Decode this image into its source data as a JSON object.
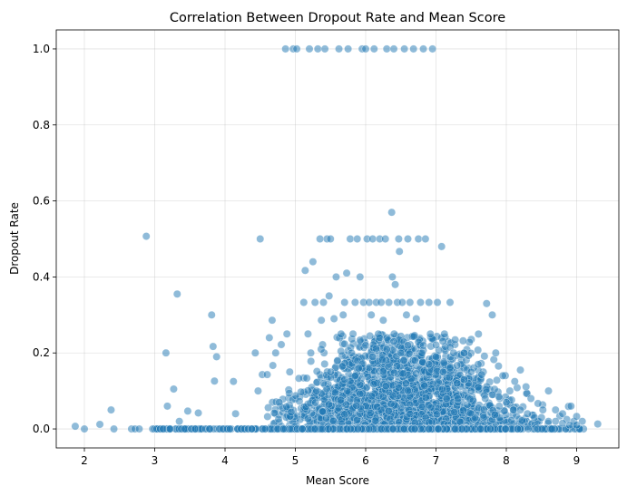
{
  "chart_data": {
    "type": "scatter",
    "title": "Correlation Between Dropout Rate and Mean Score",
    "xlabel": "Mean Score",
    "ylabel": "Dropout Rate",
    "xlim": [
      1.6,
      9.6
    ],
    "ylim": [
      -0.05,
      1.05
    ],
    "xticks": [
      2,
      3,
      4,
      5,
      6,
      7,
      8,
      9
    ],
    "xtick_labels": [
      "2",
      "3",
      "4",
      "5",
      "6",
      "7",
      "8",
      "9"
    ],
    "yticks": [
      0.0,
      0.2,
      0.4,
      0.6,
      0.8,
      1.0
    ],
    "ytick_labels": [
      "0.0",
      "0.2",
      "0.4",
      "0.6",
      "0.8",
      "1.0"
    ],
    "grid": true,
    "marker_color": "#1f77b4",
    "marker_alpha": 0.5,
    "points": [
      [
        1.87,
        0.007
      ],
      [
        2.0,
        0.0
      ],
      [
        2.22,
        0.012
      ],
      [
        2.38,
        0.05
      ],
      [
        2.42,
        0.0
      ],
      [
        2.67,
        0.0
      ],
      [
        2.72,
        0.0
      ],
      [
        2.78,
        0.0
      ],
      [
        2.88,
        0.507
      ],
      [
        2.97,
        0.0
      ],
      [
        3.03,
        0.0
      ],
      [
        3.08,
        0.0
      ],
      [
        3.12,
        0.0
      ],
      [
        3.16,
        0.2
      ],
      [
        3.18,
        0.06
      ],
      [
        3.22,
        0.0
      ],
      [
        3.27,
        0.105
      ],
      [
        3.32,
        0.355
      ],
      [
        3.35,
        0.02
      ],
      [
        3.38,
        0.0
      ],
      [
        3.43,
        0.0
      ],
      [
        3.47,
        0.047
      ],
      [
        3.52,
        0.0
      ],
      [
        3.58,
        0.0
      ],
      [
        3.62,
        0.042
      ],
      [
        3.67,
        0.0
      ],
      [
        3.72,
        0.0
      ],
      [
        3.78,
        0.0
      ],
      [
        3.81,
        0.3
      ],
      [
        3.83,
        0.217
      ],
      [
        3.85,
        0.126
      ],
      [
        3.88,
        0.19
      ],
      [
        3.92,
        0.0
      ],
      [
        3.97,
        0.0
      ],
      [
        4.03,
        0.0
      ],
      [
        4.07,
        0.0
      ],
      [
        4.12,
        0.125
      ],
      [
        4.15,
        0.04
      ],
      [
        4.18,
        0.0
      ],
      [
        4.23,
        0.0
      ],
      [
        4.28,
        0.0
      ],
      [
        4.33,
        0.0
      ],
      [
        4.38,
        0.0
      ],
      [
        4.43,
        0.2
      ],
      [
        4.47,
        0.1
      ],
      [
        4.5,
        0.5
      ],
      [
        4.53,
        0.143
      ],
      [
        4.57,
        0.0
      ],
      [
        4.6,
        0.143
      ],
      [
        4.63,
        0.24
      ],
      [
        4.67,
        0.286
      ],
      [
        4.68,
        0.167
      ],
      [
        4.7,
        0.042
      ],
      [
        4.72,
        0.2
      ],
      [
        4.75,
        0.0
      ],
      [
        4.77,
        0.07
      ],
      [
        4.8,
        0.222
      ],
      [
        4.83,
        0.0
      ],
      [
        4.86,
        1.0
      ],
      [
        4.88,
        0.25
      ],
      [
        4.92,
        0.15
      ],
      [
        4.97,
        1.0
      ],
      [
        5.02,
        1.0
      ],
      [
        5.05,
        0.133
      ],
      [
        5.1,
        0.0
      ],
      [
        5.12,
        0.333
      ],
      [
        5.14,
        0.417
      ],
      [
        5.18,
        0.25
      ],
      [
        5.2,
        1.0
      ],
      [
        5.22,
        0.2
      ],
      [
        5.25,
        0.44
      ],
      [
        5.28,
        0.333
      ],
      [
        5.32,
        1.0
      ],
      [
        5.35,
        0.5
      ],
      [
        5.37,
        0.286
      ],
      [
        5.4,
        0.333
      ],
      [
        5.42,
        1.0
      ],
      [
        5.45,
        0.5
      ],
      [
        5.48,
        0.35
      ],
      [
        5.5,
        0.5
      ],
      [
        5.55,
        0.29
      ],
      [
        5.58,
        0.4
      ],
      [
        5.62,
        1.0
      ],
      [
        5.65,
        0.25
      ],
      [
        5.68,
        0.3
      ],
      [
        5.7,
        0.333
      ],
      [
        5.73,
        0.41
      ],
      [
        5.75,
        1.0
      ],
      [
        5.78,
        0.5
      ],
      [
        5.82,
        0.25
      ],
      [
        5.85,
        0.333
      ],
      [
        5.88,
        0.5
      ],
      [
        5.92,
        0.4
      ],
      [
        5.95,
        1.0
      ],
      [
        5.97,
        0.333
      ],
      [
        6.0,
        1.0
      ],
      [
        6.02,
        0.5
      ],
      [
        6.05,
        0.333
      ],
      [
        6.08,
        0.3
      ],
      [
        6.1,
        0.5
      ],
      [
        6.12,
        1.0
      ],
      [
        6.15,
        0.333
      ],
      [
        6.18,
        0.25
      ],
      [
        6.2,
        0.5
      ],
      [
        6.22,
        0.333
      ],
      [
        6.25,
        0.286
      ],
      [
        6.28,
        0.5
      ],
      [
        6.3,
        1.0
      ],
      [
        6.33,
        0.333
      ],
      [
        6.37,
        0.57
      ],
      [
        6.38,
        0.4
      ],
      [
        6.4,
        1.0
      ],
      [
        6.42,
        0.38
      ],
      [
        6.45,
        0.333
      ],
      [
        6.47,
        0.5
      ],
      [
        6.48,
        0.467
      ],
      [
        6.52,
        0.333
      ],
      [
        6.55,
        1.0
      ],
      [
        6.58,
        0.3
      ],
      [
        6.6,
        0.5
      ],
      [
        6.63,
        0.333
      ],
      [
        6.68,
        1.0
      ],
      [
        6.72,
        0.29
      ],
      [
        6.75,
        0.5
      ],
      [
        6.78,
        0.333
      ],
      [
        6.82,
        1.0
      ],
      [
        6.85,
        0.5
      ],
      [
        6.9,
        0.333
      ],
      [
        6.92,
        0.25
      ],
      [
        6.95,
        1.0
      ],
      [
        7.02,
        0.333
      ],
      [
        7.08,
        0.48
      ],
      [
        7.12,
        0.25
      ],
      [
        7.2,
        0.333
      ],
      [
        7.25,
        0.2
      ],
      [
        7.3,
        0.167
      ],
      [
        7.4,
        0.2
      ],
      [
        7.5,
        0.15
      ],
      [
        7.6,
        0.17
      ],
      [
        7.65,
        0.143
      ],
      [
        7.72,
        0.33
      ],
      [
        7.8,
        0.3
      ],
      [
        7.85,
        0.2
      ],
      [
        7.95,
        0.14
      ],
      [
        8.05,
        0.1
      ],
      [
        8.12,
        0.125
      ],
      [
        8.2,
        0.155
      ],
      [
        8.28,
        0.111
      ],
      [
        8.35,
        0.08
      ],
      [
        8.45,
        0.067
      ],
      [
        8.52,
        0.05
      ],
      [
        8.6,
        0.1
      ],
      [
        8.7,
        0.05
      ],
      [
        8.76,
        0.034
      ],
      [
        8.8,
        0.04
      ],
      [
        8.86,
        0.025
      ],
      [
        8.92,
        0.06
      ],
      [
        8.96,
        0.02
      ],
      [
        9.0,
        0.033
      ],
      [
        9.04,
        0.0
      ],
      [
        9.08,
        0.02
      ],
      [
        9.3,
        0.013
      ],
      [
        5.3,
        0.1
      ],
      [
        5.4,
        0.12
      ],
      [
        5.5,
        0.15
      ],
      [
        5.6,
        0.18
      ],
      [
        5.7,
        0.13
      ],
      [
        5.8,
        0.2
      ],
      [
        5.9,
        0.16
      ],
      [
        6.0,
        0.22
      ],
      [
        6.1,
        0.19
      ],
      [
        6.2,
        0.24
      ],
      [
        6.3,
        0.21
      ],
      [
        6.4,
        0.23
      ],
      [
        6.5,
        0.2
      ],
      [
        6.6,
        0.22
      ],
      [
        6.7,
        0.18
      ],
      [
        6.8,
        0.2
      ],
      [
        6.9,
        0.17
      ],
      [
        7.0,
        0.19
      ],
      [
        7.1,
        0.15
      ],
      [
        7.2,
        0.16
      ],
      [
        7.3,
        0.12
      ],
      [
        7.4,
        0.13
      ],
      [
        7.5,
        0.1
      ],
      [
        7.6,
        0.11
      ],
      [
        7.7,
        0.08
      ],
      [
        7.8,
        0.09
      ],
      [
        7.9,
        0.06
      ],
      [
        8.0,
        0.07
      ],
      [
        8.1,
        0.05
      ],
      [
        8.2,
        0.05
      ],
      [
        8.3,
        0.04
      ],
      [
        8.4,
        0.03
      ],
      [
        8.5,
        0.03
      ],
      [
        8.6,
        0.02
      ],
      [
        8.7,
        0.02
      ],
      [
        8.8,
        0.015
      ],
      [
        8.9,
        0.01
      ],
      [
        9.0,
        0.01
      ]
    ]
  }
}
